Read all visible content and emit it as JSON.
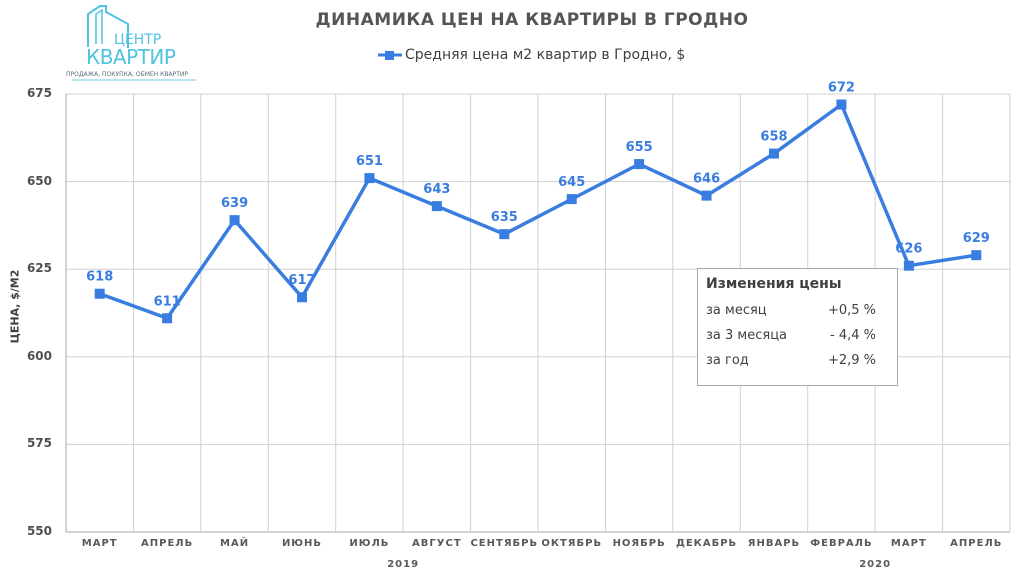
{
  "logo": {
    "line1": "ЦЕНТР",
    "line2": "КВАРТИР",
    "tagline": "ПРОДАЖА, ПОКУПКА, ОБМЕН КВАРТИР"
  },
  "info_box": {
    "title": "Изменения цены",
    "rows": [
      {
        "label": "за месяц",
        "value": "+0,5 %"
      },
      {
        "label": "за 3 месяца",
        "value": "- 4,4 %"
      },
      {
        "label": "за год",
        "value": "+2,9 %"
      }
    ]
  },
  "colors": {
    "series": "#3a7de0",
    "grid": "#d0d0d0",
    "axis_text": "#595959"
  },
  "chart_data": {
    "type": "line",
    "title": "ДИНАМИКА ЦЕН НА КВАРТИРЫ В ГРОДНО",
    "xlabel": "",
    "ylabel": "ЦЕНА, $/М2",
    "ylim": [
      550,
      675
    ],
    "yticks": [
      "550",
      "575",
      "600",
      "625",
      "650",
      "675"
    ],
    "grid": true,
    "legend_position": "top",
    "categories": [
      "МАРТ",
      "АПРЕЛЬ",
      "МАЙ",
      "ИЮНЬ",
      "ИЮЛЬ",
      "АВГУСТ",
      "СЕНТЯБРЬ",
      "ОКТЯБРЬ",
      "НОЯБРЬ",
      "ДЕКАБРЬ",
      "ЯНВАРЬ",
      "ФЕВРАЛЬ",
      "МАРТ",
      "АПРЕЛЬ"
    ],
    "year_groups": [
      {
        "label": "2019",
        "center_index": 4.5
      },
      {
        "label": "2020",
        "center_index": 11.5
      }
    ],
    "series": [
      {
        "name": "Средняя цена м2 квартир в Гродно, $",
        "values": [
          618,
          611,
          639,
          617,
          651,
          643,
          635,
          645,
          655,
          646,
          658,
          672,
          626,
          629
        ],
        "labels": [
          "618",
          "611",
          "639",
          "617",
          "651",
          "643",
          "635",
          "645",
          "655",
          "646",
          "658",
          "672",
          "626",
          "629"
        ]
      }
    ]
  }
}
